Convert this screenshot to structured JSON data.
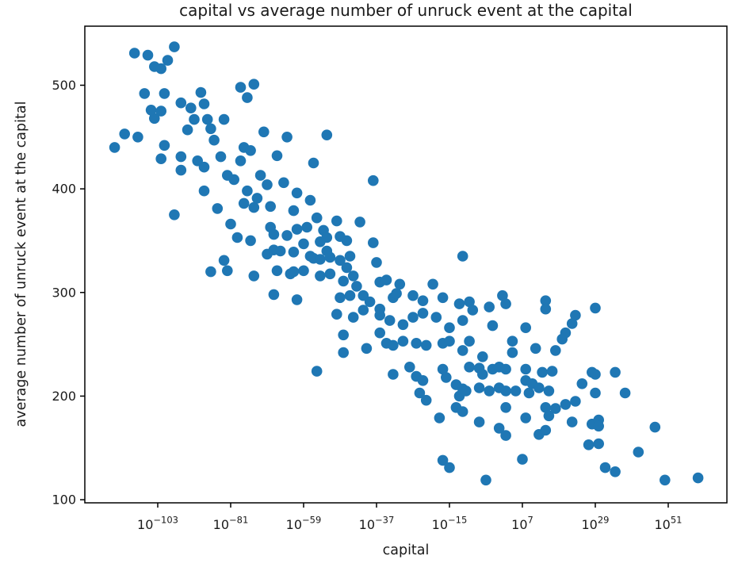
{
  "chart_data": {
    "type": "scatter",
    "title": "capital vs average number of unruck event at the capital",
    "xlabel": "capital",
    "ylabel": "average number of unruck event at the capital",
    "x_scale": "log",
    "x_tick_exponents": [
      -103,
      -81,
      -59,
      -37,
      -15,
      7,
      29,
      51
    ],
    "y_ticks": [
      100,
      200,
      300,
      400,
      500
    ],
    "xlim_exponents": [
      -125,
      68.7
    ],
    "ylim": [
      97,
      557
    ],
    "grid": false,
    "legend": false,
    "marker_color": "#1f77b4",
    "marker_radius": 6.8,
    "axis_color": "#000000",
    "tick_label_color": "#1a1a1a",
    "points": [
      [
        -116,
        440
      ],
      [
        -113,
        453
      ],
      [
        -110,
        531
      ],
      [
        -109,
        450
      ],
      [
        -107,
        492
      ],
      [
        -106,
        529
      ],
      [
        -105,
        476
      ],
      [
        -104,
        518
      ],
      [
        -104,
        468
      ],
      [
        -102,
        516
      ],
      [
        -102,
        475
      ],
      [
        -102,
        429
      ],
      [
        -101,
        492
      ],
      [
        -101,
        442
      ],
      [
        -100,
        524
      ],
      [
        -98,
        537
      ],
      [
        -98,
        375
      ],
      [
        -96,
        483
      ],
      [
        -96,
        431
      ],
      [
        -96,
        418
      ],
      [
        -94,
        457
      ],
      [
        -93,
        478
      ],
      [
        -92,
        467
      ],
      [
        -91,
        427
      ],
      [
        -90,
        493
      ],
      [
        -89,
        482
      ],
      [
        -89,
        421
      ],
      [
        -89,
        398
      ],
      [
        -88,
        467
      ],
      [
        -87,
        458
      ],
      [
        -87,
        320
      ],
      [
        -86,
        447
      ],
      [
        -85,
        381
      ],
      [
        -84,
        431
      ],
      [
        -83,
        467
      ],
      [
        -83,
        331
      ],
      [
        -82,
        413
      ],
      [
        -82,
        321
      ],
      [
        -81,
        366
      ],
      [
        -80,
        409
      ],
      [
        -79,
        353
      ],
      [
        -78,
        498
      ],
      [
        -78,
        427
      ],
      [
        -77,
        440
      ],
      [
        -77,
        386
      ],
      [
        -76,
        488
      ],
      [
        -76,
        398
      ],
      [
        -75,
        437
      ],
      [
        -75,
        350
      ],
      [
        -74,
        501
      ],
      [
        -74,
        382
      ],
      [
        -74,
        316
      ],
      [
        -73,
        391
      ],
      [
        -72,
        413
      ],
      [
        -71,
        455
      ],
      [
        -70,
        404
      ],
      [
        -70,
        337
      ],
      [
        -69,
        383
      ],
      [
        -69,
        363
      ],
      [
        -68,
        356
      ],
      [
        -68,
        341
      ],
      [
        -68,
        298
      ],
      [
        -67,
        432
      ],
      [
        -67,
        321
      ],
      [
        -66,
        340
      ],
      [
        -65,
        406
      ],
      [
        -64,
        450
      ],
      [
        -64,
        355
      ],
      [
        -63,
        318
      ],
      [
        -62,
        379
      ],
      [
        -62,
        339
      ],
      [
        -62,
        320
      ],
      [
        -61,
        396
      ],
      [
        -61,
        361
      ],
      [
        -61,
        293
      ],
      [
        -59,
        347
      ],
      [
        -59,
        321
      ],
      [
        -58,
        363
      ],
      [
        -57,
        389
      ],
      [
        -57,
        335
      ],
      [
        -56,
        425
      ],
      [
        -56,
        333
      ],
      [
        -55,
        372
      ],
      [
        -55,
        224
      ],
      [
        -54,
        349
      ],
      [
        -54,
        332
      ],
      [
        -54,
        316
      ],
      [
        -53,
        360
      ],
      [
        -52,
        452
      ],
      [
        -52,
        353
      ],
      [
        -52,
        340
      ],
      [
        -51,
        334
      ],
      [
        -51,
        318
      ],
      [
        -49,
        369
      ],
      [
        -49,
        279
      ],
      [
        -48,
        354
      ],
      [
        -48,
        331
      ],
      [
        -48,
        295
      ],
      [
        -47,
        311
      ],
      [
        -47,
        259
      ],
      [
        -47,
        242
      ],
      [
        -46,
        350
      ],
      [
        -46,
        324
      ],
      [
        -45,
        335
      ],
      [
        -45,
        297
      ],
      [
        -44,
        316
      ],
      [
        -44,
        276
      ],
      [
        -43,
        306
      ],
      [
        -42,
        368
      ],
      [
        -41,
        297
      ],
      [
        -41,
        283
      ],
      [
        -40,
        246
      ],
      [
        -39,
        291
      ],
      [
        -38,
        408
      ],
      [
        -38,
        348
      ],
      [
        -37,
        329
      ],
      [
        -36,
        310
      ],
      [
        -36,
        284
      ],
      [
        -36,
        278
      ],
      [
        -36,
        261
      ],
      [
        -34,
        312
      ],
      [
        -34,
        251
      ],
      [
        -33,
        273
      ],
      [
        -32,
        295
      ],
      [
        -32,
        249
      ],
      [
        -32,
        221
      ],
      [
        -31,
        299
      ],
      [
        -30,
        308
      ],
      [
        -29,
        269
      ],
      [
        -29,
        253
      ],
      [
        -27,
        228
      ],
      [
        -26,
        297
      ],
      [
        -26,
        276
      ],
      [
        -25,
        251
      ],
      [
        -25,
        219
      ],
      [
        -24,
        203
      ],
      [
        -23,
        292
      ],
      [
        -23,
        280
      ],
      [
        -23,
        215
      ],
      [
        -22,
        249
      ],
      [
        -22,
        196
      ],
      [
        -20,
        308
      ],
      [
        -19,
        276
      ],
      [
        -18,
        179
      ],
      [
        -17,
        295
      ],
      [
        -17,
        251
      ],
      [
        -17,
        226
      ],
      [
        -17,
        138
      ],
      [
        -16,
        218
      ],
      [
        -15,
        266
      ],
      [
        -15,
        253
      ],
      [
        -15,
        131
      ],
      [
        -13,
        211
      ],
      [
        -13,
        189
      ],
      [
        -12,
        289
      ],
      [
        -12,
        200
      ],
      [
        -11,
        335
      ],
      [
        -11,
        273
      ],
      [
        -11,
        244
      ],
      [
        -11,
        207
      ],
      [
        -11,
        185
      ],
      [
        -10,
        205
      ],
      [
        -9,
        291
      ],
      [
        -9,
        253
      ],
      [
        -9,
        228
      ],
      [
        -8,
        283
      ],
      [
        -6,
        227
      ],
      [
        -6,
        208
      ],
      [
        -6,
        175
      ],
      [
        -5,
        238
      ],
      [
        -5,
        221
      ],
      [
        -4,
        119
      ],
      [
        -3,
        286
      ],
      [
        -3,
        205
      ],
      [
        -2,
        268
      ],
      [
        -2,
        226
      ],
      [
        0,
        228
      ],
      [
        0,
        208
      ],
      [
        0,
        169
      ],
      [
        1,
        297
      ],
      [
        2,
        289
      ],
      [
        2,
        226
      ],
      [
        2,
        205
      ],
      [
        2,
        189
      ],
      [
        2,
        162
      ],
      [
        4,
        253
      ],
      [
        4,
        242
      ],
      [
        5,
        205
      ],
      [
        7,
        139
      ],
      [
        8,
        266
      ],
      [
        8,
        226
      ],
      [
        8,
        215
      ],
      [
        8,
        179
      ],
      [
        9,
        203
      ],
      [
        10,
        212
      ],
      [
        11,
        246
      ],
      [
        12,
        208
      ],
      [
        12,
        163
      ],
      [
        13,
        223
      ],
      [
        14,
        292
      ],
      [
        14,
        284
      ],
      [
        14,
        189
      ],
      [
        14,
        167
      ],
      [
        15,
        205
      ],
      [
        15,
        181
      ],
      [
        16,
        224
      ],
      [
        17,
        244
      ],
      [
        17,
        188
      ],
      [
        19,
        255
      ],
      [
        20,
        261
      ],
      [
        20,
        192
      ],
      [
        22,
        270
      ],
      [
        22,
        175
      ],
      [
        23,
        278
      ],
      [
        23,
        195
      ],
      [
        25,
        212
      ],
      [
        27,
        153
      ],
      [
        28,
        223
      ],
      [
        28,
        173
      ],
      [
        29,
        285
      ],
      [
        29,
        221
      ],
      [
        29,
        203
      ],
      [
        30,
        177
      ],
      [
        30,
        171
      ],
      [
        30,
        154
      ],
      [
        32,
        131
      ],
      [
        35,
        223
      ],
      [
        35,
        127
      ],
      [
        38,
        203
      ],
      [
        42,
        146
      ],
      [
        47,
        170
      ],
      [
        50,
        119
      ],
      [
        60,
        121
      ]
    ]
  }
}
